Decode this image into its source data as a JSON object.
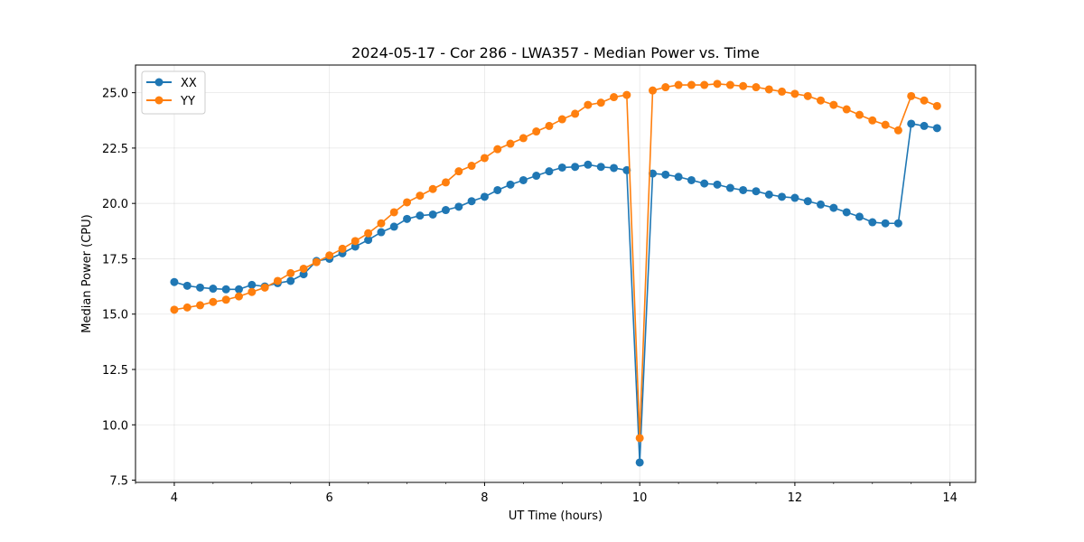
{
  "chart_data": {
    "type": "line",
    "title": "2024-05-17 - Cor 286 - LWA357 - Median Power vs. Time",
    "xlabel": "UT Time (hours)",
    "ylabel": "Median Power (CPU)",
    "xlim": [
      3.5,
      14.33
    ],
    "ylim": [
      7.4,
      26.25
    ],
    "xticks": [
      4,
      6,
      8,
      10,
      12,
      14
    ],
    "yticks": [
      7.5,
      10.0,
      12.5,
      15.0,
      17.5,
      20.0,
      22.5,
      25.0
    ],
    "ytick_labels": [
      "7.5",
      "10.0",
      "12.5",
      "15.0",
      "17.5",
      "20.0",
      "22.5",
      "25.0"
    ],
    "grid": true,
    "legend_position": "top-left",
    "x": [
      4.0,
      4.167,
      4.333,
      4.5,
      4.667,
      4.833,
      5.0,
      5.167,
      5.333,
      5.5,
      5.667,
      5.833,
      6.0,
      6.167,
      6.333,
      6.5,
      6.667,
      6.833,
      7.0,
      7.167,
      7.333,
      7.5,
      7.667,
      7.833,
      8.0,
      8.167,
      8.333,
      8.5,
      8.667,
      8.833,
      9.0,
      9.167,
      9.333,
      9.5,
      9.667,
      9.833,
      10.0,
      10.167,
      10.333,
      10.5,
      10.667,
      10.833,
      11.0,
      11.167,
      11.333,
      11.5,
      11.667,
      11.833,
      12.0,
      12.167,
      12.333,
      12.5,
      12.667,
      12.833,
      13.0,
      13.167,
      13.333,
      13.5,
      13.667,
      13.833
    ],
    "series": [
      {
        "name": "XX",
        "color": "#1f77b4",
        "values": [
          16.45,
          16.28,
          16.2,
          16.15,
          16.12,
          16.12,
          16.32,
          16.25,
          16.4,
          16.5,
          16.8,
          17.4,
          17.5,
          17.75,
          18.05,
          18.35,
          18.7,
          18.95,
          19.3,
          19.45,
          19.5,
          19.7,
          19.85,
          20.1,
          20.3,
          20.6,
          20.85,
          21.05,
          21.25,
          21.45,
          21.62,
          21.65,
          21.75,
          21.65,
          21.6,
          21.5,
          8.3,
          21.35,
          21.3,
          21.2,
          21.05,
          20.9,
          20.85,
          20.7,
          20.6,
          20.55,
          20.4,
          20.3,
          20.25,
          20.1,
          19.95,
          19.8,
          19.6,
          19.4,
          19.15,
          19.1,
          19.1,
          23.6,
          23.5,
          23.4
        ]
      },
      {
        "name": "YY",
        "color": "#ff7f0e",
        "values": [
          15.2,
          15.3,
          15.4,
          15.55,
          15.65,
          15.8,
          16.0,
          16.2,
          16.5,
          16.85,
          17.05,
          17.35,
          17.65,
          17.95,
          18.3,
          18.65,
          19.1,
          19.6,
          20.05,
          20.35,
          20.65,
          20.95,
          21.45,
          21.7,
          22.05,
          22.45,
          22.7,
          22.95,
          23.25,
          23.5,
          23.8,
          24.05,
          24.45,
          24.55,
          24.8,
          24.9,
          9.4,
          25.1,
          25.25,
          25.35,
          25.35,
          25.35,
          25.4,
          25.35,
          25.3,
          25.25,
          25.15,
          25.05,
          24.95,
          24.85,
          24.65,
          24.45,
          24.25,
          24.0,
          23.75,
          23.55,
          23.3,
          24.85,
          24.65,
          24.4
        ]
      }
    ]
  }
}
